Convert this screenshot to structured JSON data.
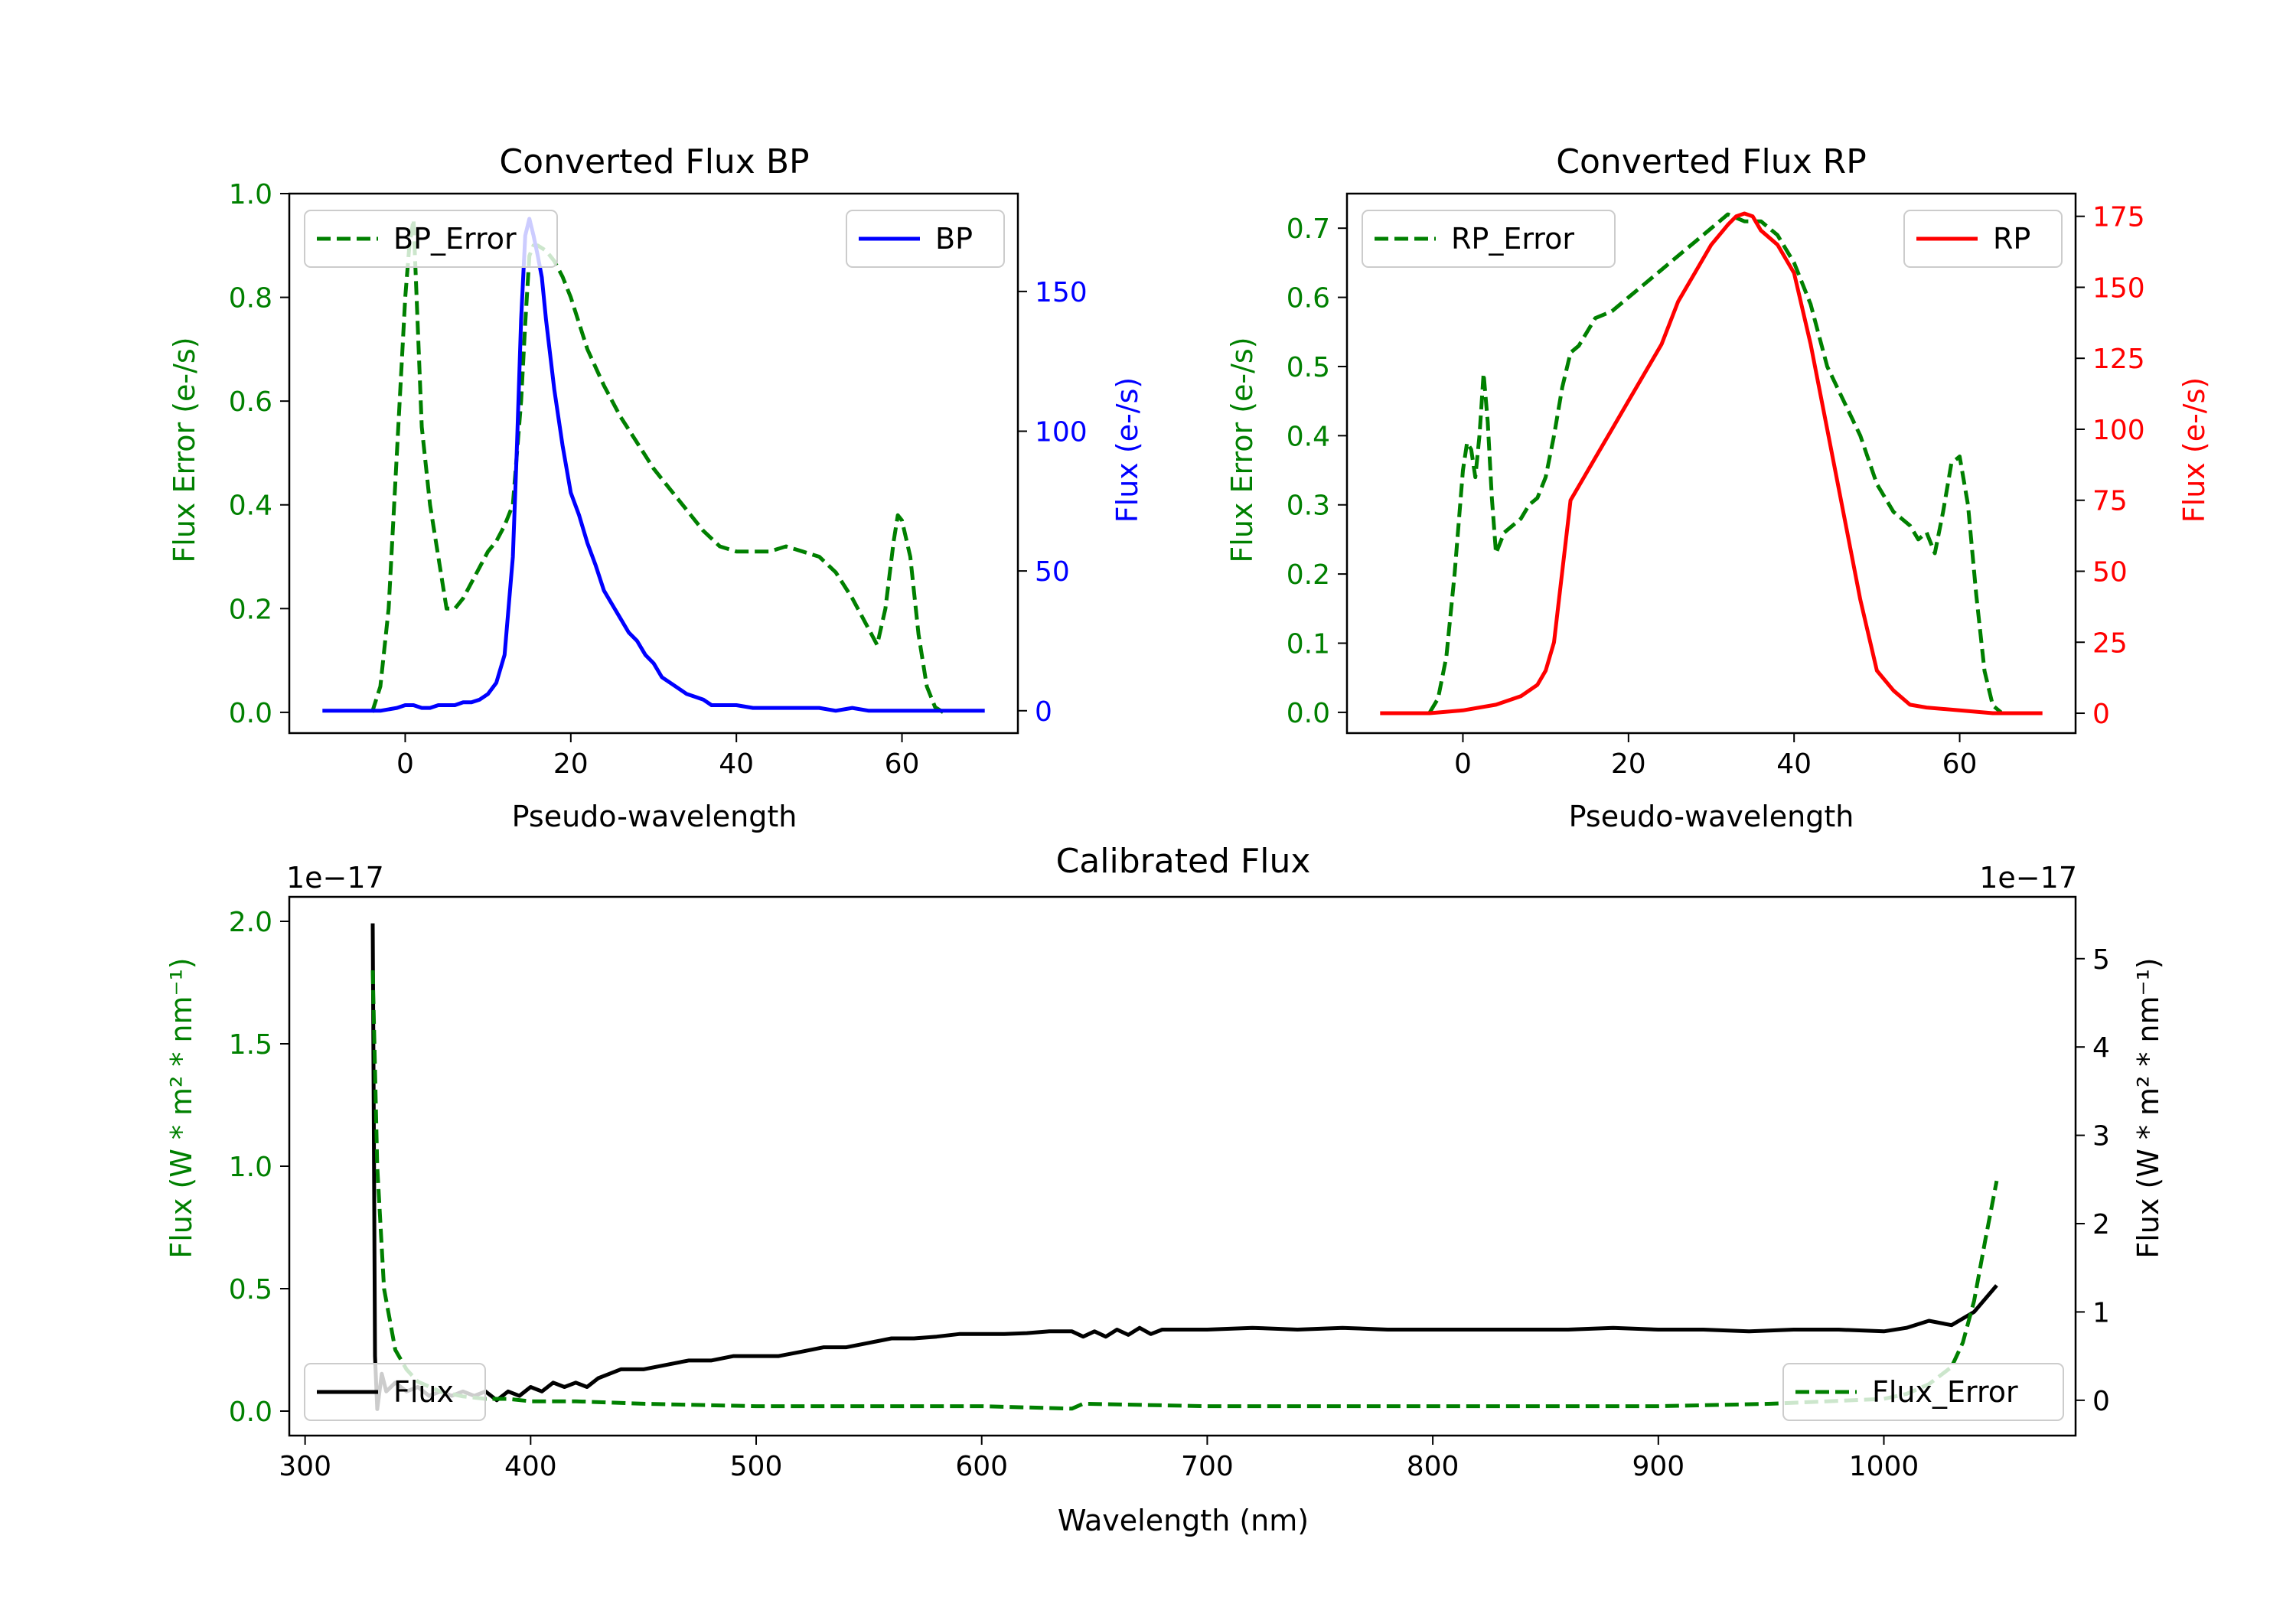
{
  "chart_data": [
    {
      "id": "bp",
      "type": "line",
      "title": "Converted Flux BP",
      "xlabel": "Pseudo-wavelength",
      "xlim": [
        -14,
        74
      ],
      "xticks": [
        "0",
        "20",
        "40",
        "60"
      ],
      "left_axis": {
        "label": "Flux Error (e-/s)",
        "color": "#008000",
        "ylim": [
          -0.04,
          1.0
        ],
        "ticks": [
          "0.0",
          "0.2",
          "0.4",
          "0.6",
          "0.8",
          "1.0"
        ]
      },
      "right_axis": {
        "label": "Flux (e-/s)",
        "color": "#0000ff",
        "ylim": [
          -8,
          185
        ],
        "ticks": [
          "0",
          "50",
          "100",
          "150"
        ]
      },
      "series": [
        {
          "name": "BP_Error",
          "axis": "left",
          "style": "dashed",
          "color": "#008000",
          "x": [
            -4,
            -3,
            -2,
            -1,
            0,
            0.5,
            1,
            1.5,
            2,
            3,
            4,
            5,
            6,
            7,
            8,
            9,
            10,
            11,
            12,
            13,
            13.5,
            14,
            14.5,
            15,
            15.5,
            16,
            17,
            18,
            19,
            20,
            22,
            24,
            26,
            28,
            30,
            32,
            34,
            36,
            38,
            40,
            42,
            44,
            46,
            48,
            50,
            52,
            54,
            56,
            57,
            58,
            59,
            59.5,
            60,
            61,
            62,
            63,
            64,
            65
          ],
          "y": [
            0.0,
            0.05,
            0.2,
            0.5,
            0.8,
            0.9,
            0.95,
            0.75,
            0.55,
            0.4,
            0.3,
            0.2,
            0.2,
            0.22,
            0.25,
            0.28,
            0.31,
            0.33,
            0.36,
            0.4,
            0.5,
            0.6,
            0.75,
            0.88,
            0.9,
            0.9,
            0.89,
            0.87,
            0.84,
            0.8,
            0.7,
            0.63,
            0.57,
            0.52,
            0.47,
            0.43,
            0.39,
            0.35,
            0.32,
            0.31,
            0.31,
            0.31,
            0.32,
            0.31,
            0.3,
            0.27,
            0.22,
            0.16,
            0.13,
            0.2,
            0.33,
            0.38,
            0.37,
            0.3,
            0.15,
            0.05,
            0.01,
            0.0
          ]
        },
        {
          "name": "BP",
          "axis": "right",
          "style": "solid",
          "color": "#0000ff",
          "x": [
            -10,
            -6,
            -3,
            -1,
            0,
            1,
            2,
            3,
            4,
            5,
            6,
            7,
            8,
            9,
            10,
            11,
            12,
            13,
            13.5,
            14,
            14.5,
            15,
            15.5,
            16,
            16.5,
            17,
            18,
            19,
            20,
            21,
            22,
            23,
            24,
            25,
            26,
            27,
            28,
            29,
            30,
            31,
            32,
            33,
            34,
            35,
            36,
            37,
            38,
            40,
            42,
            44,
            46,
            48,
            50,
            52,
            54,
            56,
            58,
            60,
            62,
            64,
            66,
            68,
            70
          ],
          "y": [
            0,
            0,
            0,
            1,
            2,
            2,
            1,
            1,
            2,
            2,
            2,
            3,
            3,
            4,
            6,
            10,
            20,
            55,
            95,
            140,
            170,
            176,
            170,
            163,
            155,
            140,
            115,
            95,
            78,
            70,
            60,
            52,
            43,
            38,
            33,
            28,
            25,
            20,
            17,
            12,
            10,
            8,
            6,
            5,
            4,
            2,
            2,
            2,
            1,
            1,
            1,
            1,
            1,
            0,
            1,
            0,
            0,
            0,
            0,
            0,
            0,
            0,
            0
          ]
        }
      ],
      "legend": [
        {
          "label": "BP_Error",
          "placement": "upper-left"
        },
        {
          "label": "BP",
          "placement": "upper-right"
        }
      ]
    },
    {
      "id": "rp",
      "type": "line",
      "title": "Converted Flux RP",
      "xlabel": "Pseudo-wavelength",
      "xlim": [
        -14,
        74
      ],
      "xticks": [
        "0",
        "20",
        "40",
        "60"
      ],
      "left_axis": {
        "label": "Flux Error (e-/s)",
        "color": "#008000",
        "ylim": [
          -0.03,
          0.75
        ],
        "ticks": [
          "0.0",
          "0.1",
          "0.2",
          "0.3",
          "0.4",
          "0.5",
          "0.6",
          "0.7"
        ]
      },
      "right_axis": {
        "label": "Flux (e-/s)",
        "color": "#ff0000",
        "ylim": [
          -7,
          183
        ],
        "ticks": [
          "0",
          "25",
          "50",
          "75",
          "100",
          "125",
          "150",
          "175"
        ]
      },
      "series": [
        {
          "name": "RP_Error",
          "axis": "left",
          "style": "dashed",
          "color": "#008000",
          "x": [
            -4,
            -3,
            -2,
            -1,
            0,
            0.5,
            1,
            1.5,
            2,
            2.5,
            3,
            3.5,
            4,
            5,
            6,
            7,
            8,
            9,
            10,
            11,
            12,
            13,
            14,
            16,
            18,
            20,
            22,
            24,
            26,
            28,
            30,
            32,
            34,
            36,
            38,
            40,
            42,
            44,
            46,
            48,
            50,
            52,
            54,
            55,
            56,
            57,
            58,
            59,
            60,
            61,
            62,
            63,
            64,
            65
          ],
          "y": [
            0.0,
            0.02,
            0.08,
            0.2,
            0.35,
            0.39,
            0.38,
            0.34,
            0.4,
            0.49,
            0.42,
            0.31,
            0.23,
            0.26,
            0.27,
            0.28,
            0.3,
            0.31,
            0.34,
            0.4,
            0.47,
            0.52,
            0.53,
            0.57,
            0.58,
            0.6,
            0.62,
            0.64,
            0.66,
            0.68,
            0.7,
            0.72,
            0.71,
            0.71,
            0.69,
            0.65,
            0.59,
            0.5,
            0.45,
            0.4,
            0.33,
            0.29,
            0.27,
            0.25,
            0.26,
            0.23,
            0.29,
            0.36,
            0.37,
            0.3,
            0.17,
            0.06,
            0.01,
            0.0
          ]
        },
        {
          "name": "RP",
          "axis": "right",
          "style": "solid",
          "color": "#ff0000",
          "x": [
            -10,
            -4,
            0,
            4,
            7,
            9,
            10,
            11,
            12,
            13,
            14,
            16,
            18,
            20,
            22,
            24,
            26,
            28,
            30,
            32,
            33,
            34,
            35,
            36,
            38,
            40,
            42,
            44,
            46,
            48,
            50,
            52,
            54,
            56,
            60,
            64,
            70
          ],
          "y": [
            0,
            0,
            1,
            3,
            6,
            10,
            15,
            25,
            50,
            75,
            80,
            90,
            100,
            110,
            120,
            130,
            145,
            155,
            165,
            172,
            175,
            176,
            175,
            170,
            165,
            155,
            130,
            100,
            70,
            40,
            15,
            8,
            3,
            2,
            1,
            0,
            0
          ]
        }
      ],
      "legend": [
        {
          "label": "RP_Error",
          "placement": "upper-left"
        },
        {
          "label": "RP",
          "placement": "upper-right"
        }
      ]
    },
    {
      "id": "cal",
      "type": "line",
      "title": "Calibrated Flux",
      "xlabel": "Wavelength (nm)",
      "xlim": [
        293,
        1085
      ],
      "xticks": [
        "300",
        "400",
        "500",
        "600",
        "700",
        "800",
        "900",
        "1000"
      ],
      "left_axis": {
        "label": "Flux (W * m² * nm⁻¹)",
        "offset": "1e−17",
        "color": "#008000",
        "ylim": [
          -0.1,
          2.1
        ],
        "ticks": [
          "0.0",
          "0.5",
          "1.0",
          "1.5",
          "2.0"
        ]
      },
      "right_axis": {
        "label": "Flux (W * m² * nm⁻¹)",
        "offset": "1e−17",
        "color": "#000000",
        "ylim": [
          -0.4,
          5.7
        ],
        "ticks": [
          "0",
          "1",
          "2",
          "3",
          "4",
          "5"
        ]
      },
      "series": [
        {
          "name": "Flux",
          "axis": "right",
          "style": "solid",
          "color": "#000000",
          "x": [
            330,
            330.5,
            331,
            332,
            334,
            336,
            340,
            345,
            350,
            355,
            360,
            365,
            370,
            375,
            380,
            385,
            390,
            395,
            400,
            405,
            410,
            415,
            420,
            425,
            430,
            435,
            440,
            450,
            460,
            470,
            480,
            490,
            500,
            510,
            520,
            530,
            540,
            550,
            560,
            570,
            580,
            590,
            600,
            610,
            620,
            630,
            640,
            645,
            650,
            655,
            660,
            665,
            670,
            675,
            680,
            690,
            700,
            720,
            740,
            760,
            780,
            800,
            820,
            840,
            860,
            880,
            900,
            920,
            940,
            960,
            980,
            1000,
            1010,
            1020,
            1030,
            1040,
            1050
          ],
          "y": [
            5.4,
            3.0,
            0.5,
            -0.1,
            0.3,
            0.1,
            0.2,
            0.1,
            0.15,
            0.05,
            0.1,
            0.05,
            0.1,
            0.05,
            0.1,
            0.0,
            0.1,
            0.05,
            0.15,
            0.1,
            0.2,
            0.15,
            0.2,
            0.15,
            0.25,
            0.3,
            0.35,
            0.35,
            0.4,
            0.45,
            0.45,
            0.5,
            0.5,
            0.5,
            0.55,
            0.6,
            0.6,
            0.65,
            0.7,
            0.7,
            0.72,
            0.75,
            0.75,
            0.75,
            0.76,
            0.78,
            0.78,
            0.72,
            0.78,
            0.72,
            0.8,
            0.74,
            0.82,
            0.75,
            0.8,
            0.8,
            0.8,
            0.82,
            0.8,
            0.82,
            0.8,
            0.8,
            0.8,
            0.8,
            0.8,
            0.82,
            0.8,
            0.8,
            0.78,
            0.8,
            0.8,
            0.78,
            0.82,
            0.9,
            0.85,
            1.0,
            1.3
          ]
        },
        {
          "name": "Flux_Error",
          "axis": "left",
          "style": "dashed",
          "color": "#008000",
          "x": [
            330,
            332,
            335,
            340,
            345,
            350,
            360,
            370,
            380,
            390,
            400,
            420,
            450,
            500,
            550,
            600,
            640,
            645,
            700,
            800,
            900,
            950,
            1000,
            1010,
            1020,
            1030,
            1035,
            1040,
            1045,
            1050
          ],
          "y": [
            1.8,
            1.0,
            0.5,
            0.25,
            0.17,
            0.12,
            0.08,
            0.06,
            0.05,
            0.05,
            0.04,
            0.04,
            0.03,
            0.02,
            0.02,
            0.02,
            0.01,
            0.03,
            0.02,
            0.02,
            0.02,
            0.03,
            0.05,
            0.07,
            0.11,
            0.18,
            0.28,
            0.45,
            0.7,
            0.94
          ]
        }
      ],
      "legend": [
        {
          "label": "Flux",
          "placement": "lower-left"
        },
        {
          "label": "Flux_Error",
          "placement": "lower-right"
        }
      ]
    }
  ]
}
